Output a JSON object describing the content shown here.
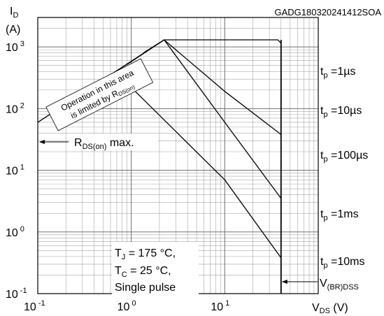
{
  "chart_data": {
    "type": "line",
    "title": "",
    "figure_id": "GADG180320241412SOA",
    "y_axis": {
      "symbol": "I",
      "subscript": "D",
      "unit": "(A)",
      "scale": "log",
      "range": [
        0.1,
        3000
      ],
      "tick_values": [
        0.1,
        1,
        10,
        100,
        1000
      ],
      "tick_labels": [
        {
          "base": "10",
          "exp": "-1"
        },
        {
          "base": "10",
          "exp": "0"
        },
        {
          "base": "10",
          "exp": "1"
        },
        {
          "base": "10",
          "exp": "2"
        },
        {
          "base": "10",
          "exp": "3"
        }
      ]
    },
    "x_axis": {
      "symbol": "V",
      "subscript": "DS",
      "unit": "(V)",
      "scale": "log",
      "range": [
        0.1,
        100
      ],
      "tick_values": [
        0.1,
        1,
        10
      ],
      "tick_labels": [
        {
          "base": "10",
          "exp": "-1"
        },
        {
          "base": "10",
          "exp": "0"
        },
        {
          "base": "10",
          "exp": "1"
        }
      ]
    },
    "grid": true,
    "colors": {
      "line": "#000000",
      "grid": "#a6a6a6",
      "axis": "#000000"
    },
    "series": [
      {
        "name": "t_p = 1µs",
        "label_main": "t",
        "label_sub": "p",
        "label_rest": " =1µs",
        "x": [
          2.25,
          37,
          40,
          40
        ],
        "y": [
          1300,
          1300,
          1150,
          250
        ]
      },
      {
        "name": "t_p = 10µs",
        "label_main": "t",
        "label_sub": "p",
        "label_rest": " =10µs",
        "x": [
          1.35,
          2.25,
          10,
          40
        ],
        "y": [
          800,
          1300,
          190,
          38
        ]
      },
      {
        "name": "t_p = 100µs",
        "label_main": "t",
        "label_sub": "p",
        "label_rest": " =100µs",
        "x": [
          0.9,
          2.25,
          10,
          40
        ],
        "y": [
          520,
          1300,
          60,
          3.5
        ]
      },
      {
        "name": "t_p = 1ms",
        "label_main": "t",
        "label_sub": "p",
        "label_rest": " =1ms",
        "x": [
          0.6,
          1,
          10,
          40
        ],
        "y": [
          350,
          220,
          7,
          0.38
        ]
      },
      {
        "name": "t_p = 10ms",
        "label_main": "t",
        "label_sub": "p",
        "label_rest": " =10ms",
        "x": [
          0.4,
          0.55
        ],
        "y": [
          230,
          180
        ]
      }
    ],
    "rds_on_limit_line": {
      "x": [
        0.1,
        2.25
      ],
      "y": [
        60,
        1300
      ]
    },
    "vbr_dss_limit": {
      "x": 40,
      "y": [
        0.1,
        1300
      ]
    },
    "annotations": {
      "rds_box_line1": "Operation in this area",
      "rds_box_line2_main": "is limited by R",
      "rds_box_line2_sub": "DS(on)",
      "rds_max_main": "R",
      "rds_max_sub": "DS(on)",
      "rds_max_rest": " max.",
      "vbr_main": "V",
      "vbr_sub": "(BR)DSS",
      "cond_tj_main": "T",
      "cond_tj_sub": "J",
      "cond_tj_rest": " = 175 °C,",
      "cond_tc_main": "T",
      "cond_tc_sub": "C",
      "cond_tc_rest": " = 25 °C,",
      "cond_pulse": "Single pulse"
    }
  }
}
